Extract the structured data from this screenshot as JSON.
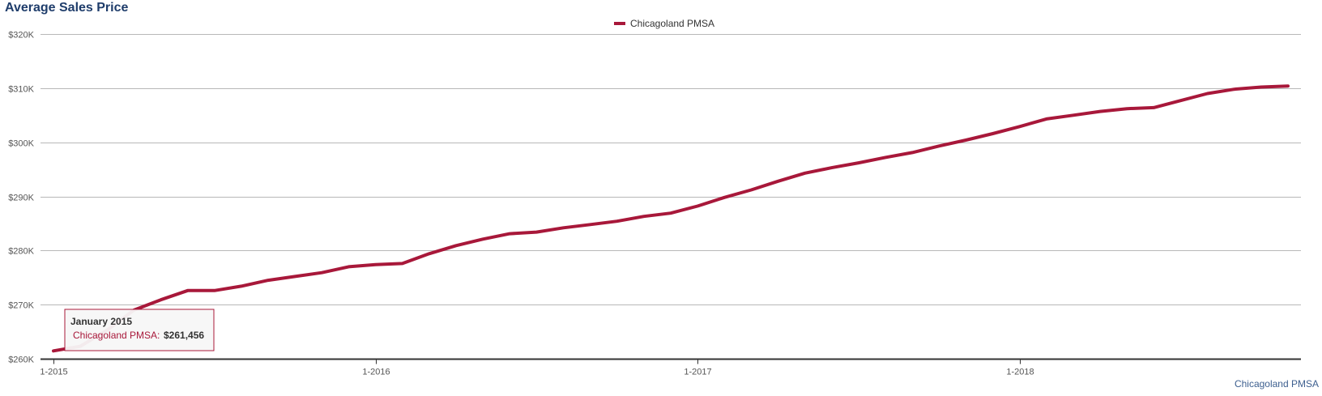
{
  "chart_data": {
    "type": "line",
    "title": "Average Sales Price",
    "xlabel": "",
    "ylabel": "",
    "ylim": [
      260000,
      320000
    ],
    "y_ticks": [
      260000,
      270000,
      280000,
      290000,
      300000,
      310000,
      320000
    ],
    "y_tick_labels": [
      "$260K",
      "$270K",
      "$280K",
      "$290K",
      "$300K",
      "$310K",
      "$320K"
    ],
    "x_tick_labels": [
      {
        "label": "1-2015",
        "index": 0
      },
      {
        "label": "1-2016",
        "index": 12
      },
      {
        "label": "1-2017",
        "index": 24
      },
      {
        "label": "1-2018",
        "index": 36
      }
    ],
    "grid": true,
    "legend_position": "top-center",
    "series": [
      {
        "name": "Chicagoland PMSA",
        "color": "#a8183a",
        "x": [
          "2015-01",
          "2015-02",
          "2015-03",
          "2015-04",
          "2015-05",
          "2015-06",
          "2015-07",
          "2015-08",
          "2015-09",
          "2015-10",
          "2015-11",
          "2015-12",
          "2016-01",
          "2016-02",
          "2016-03",
          "2016-04",
          "2016-05",
          "2016-06",
          "2016-07",
          "2016-08",
          "2016-09",
          "2016-10",
          "2016-11",
          "2016-12",
          "2017-01",
          "2017-02",
          "2017-03",
          "2017-04",
          "2017-05",
          "2017-06",
          "2017-07",
          "2017-08",
          "2017-09",
          "2017-10",
          "2017-11",
          "2017-12",
          "2018-01",
          "2018-02",
          "2018-03",
          "2018-04",
          "2018-05",
          "2018-06",
          "2018-07",
          "2018-08",
          "2018-09",
          "2018-10",
          "2018-11"
        ],
        "values": [
          261456,
          262300,
          265300,
          269000,
          270900,
          272600,
          272600,
          273400,
          274500,
          275200,
          275900,
          277000,
          277400,
          277600,
          279400,
          280900,
          282100,
          283100,
          283400,
          284200,
          284800,
          285400,
          286300,
          286900,
          288200,
          289800,
          291200,
          292800,
          294300,
          295300,
          296200,
          297200,
          298100,
          299300,
          300400,
          301600,
          302900,
          304300,
          305000,
          305700,
          306200,
          306400,
          307700,
          309000,
          309800,
          310200,
          310400
        ]
      }
    ]
  },
  "legend": {
    "label": "Chicagoland PMSA"
  },
  "tooltip": {
    "title": "January 2015",
    "series_label": "Chicagoland PMSA:",
    "value": "$261,456",
    "point_index": 0
  },
  "credit": "Chicagoland PMSA"
}
